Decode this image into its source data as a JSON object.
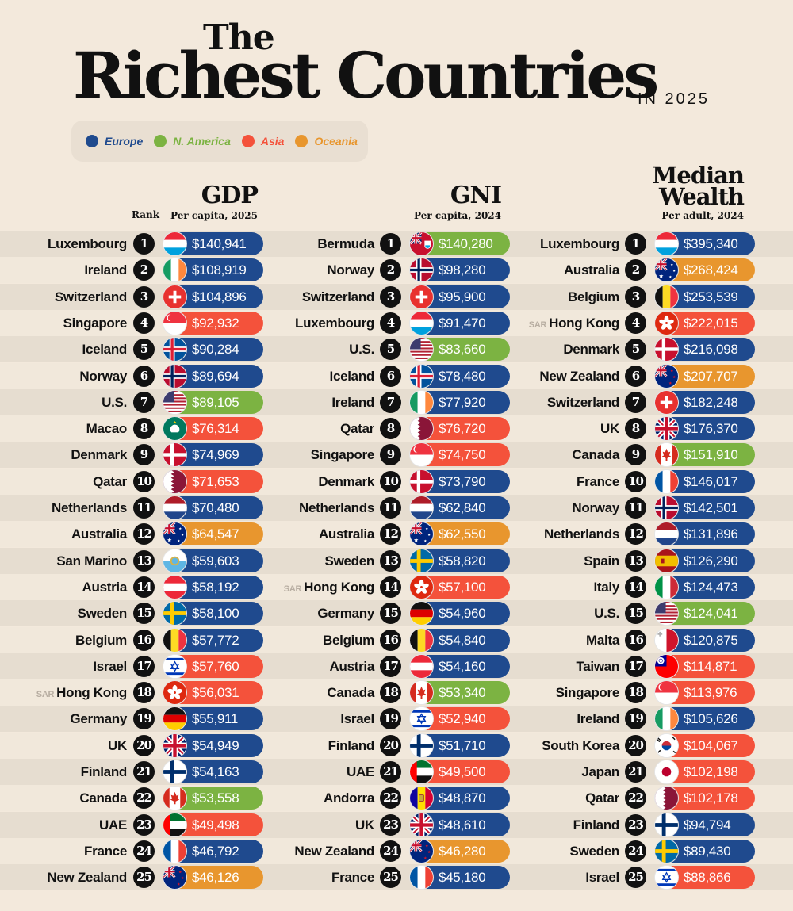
{
  "title": {
    "the": "The",
    "main": "Richest Countries",
    "year": "IN 2025"
  },
  "legend": [
    {
      "label": "Europe",
      "color": "#1f4a8e",
      "region": "europe"
    },
    {
      "label": "N. America",
      "color": "#7cb342",
      "region": "namerica"
    },
    {
      "label": "Asia",
      "color": "#f4523b",
      "region": "asia"
    },
    {
      "label": "Oceania",
      "color": "#e8962e",
      "region": "oceania"
    }
  ],
  "region_colors": {
    "europe": "#1f4a8e",
    "namerica": "#7cb342",
    "asia": "#f4523b",
    "oceania": "#e8962e"
  },
  "rank_header": "Rank",
  "chart_data": [
    {
      "type": "table",
      "title": "GDP",
      "subtitle": "Per capita, 2025",
      "rows": [
        {
          "rank": 1,
          "country": "Luxembourg",
          "value": "$140,941",
          "region": "europe",
          "flag": "lu"
        },
        {
          "rank": 2,
          "country": "Ireland",
          "value": "$108,919",
          "region": "europe",
          "flag": "ie"
        },
        {
          "rank": 3,
          "country": "Switzerland",
          "value": "$104,896",
          "region": "europe",
          "flag": "ch"
        },
        {
          "rank": 4,
          "country": "Singapore",
          "value": "$92,932",
          "region": "asia",
          "flag": "sg"
        },
        {
          "rank": 5,
          "country": "Iceland",
          "value": "$90,284",
          "region": "europe",
          "flag": "is"
        },
        {
          "rank": 6,
          "country": "Norway",
          "value": "$89,694",
          "region": "europe",
          "flag": "no"
        },
        {
          "rank": 7,
          "country": "U.S.",
          "value": "$89,105",
          "region": "namerica",
          "flag": "us"
        },
        {
          "rank": 8,
          "country": "Macao",
          "value": "$76,314",
          "region": "asia",
          "flag": "mo"
        },
        {
          "rank": 9,
          "country": "Denmark",
          "value": "$74,969",
          "region": "europe",
          "flag": "dk"
        },
        {
          "rank": 10,
          "country": "Qatar",
          "value": "$71,653",
          "region": "asia",
          "flag": "qa"
        },
        {
          "rank": 11,
          "country": "Netherlands",
          "value": "$70,480",
          "region": "europe",
          "flag": "nl"
        },
        {
          "rank": 12,
          "country": "Australia",
          "value": "$64,547",
          "region": "oceania",
          "flag": "au"
        },
        {
          "rank": 13,
          "country": "San Marino",
          "value": "$59,603",
          "region": "europe",
          "flag": "sm"
        },
        {
          "rank": 14,
          "country": "Austria",
          "value": "$58,192",
          "region": "europe",
          "flag": "at"
        },
        {
          "rank": 15,
          "country": "Sweden",
          "value": "$58,100",
          "region": "europe",
          "flag": "se"
        },
        {
          "rank": 16,
          "country": "Belgium",
          "value": "$57,772",
          "region": "europe",
          "flag": "be"
        },
        {
          "rank": 17,
          "country": "Israel",
          "value": "$57,760",
          "region": "asia",
          "flag": "il"
        },
        {
          "rank": 18,
          "country": "Hong Kong",
          "prefix": "SAR",
          "value": "$56,031",
          "region": "asia",
          "flag": "hk"
        },
        {
          "rank": 19,
          "country": "Germany",
          "value": "$55,911",
          "region": "europe",
          "flag": "de"
        },
        {
          "rank": 20,
          "country": "UK",
          "value": "$54,949",
          "region": "europe",
          "flag": "gb"
        },
        {
          "rank": 21,
          "country": "Finland",
          "value": "$54,163",
          "region": "europe",
          "flag": "fi"
        },
        {
          "rank": 22,
          "country": "Canada",
          "value": "$53,558",
          "region": "namerica",
          "flag": "ca"
        },
        {
          "rank": 23,
          "country": "UAE",
          "value": "$49,498",
          "region": "asia",
          "flag": "ae"
        },
        {
          "rank": 24,
          "country": "France",
          "value": "$46,792",
          "region": "europe",
          "flag": "fr"
        },
        {
          "rank": 25,
          "country": "New Zealand",
          "value": "$46,126",
          "region": "oceania",
          "flag": "nz"
        }
      ]
    },
    {
      "type": "table",
      "title": "GNI",
      "subtitle": "Per capita, 2024",
      "rows": [
        {
          "rank": 1,
          "country": "Bermuda",
          "value": "$140,280",
          "region": "namerica",
          "flag": "bm"
        },
        {
          "rank": 2,
          "country": "Norway",
          "value": "$98,280",
          "region": "europe",
          "flag": "no"
        },
        {
          "rank": 3,
          "country": "Switzerland",
          "value": "$95,900",
          "region": "europe",
          "flag": "ch"
        },
        {
          "rank": 4,
          "country": "Luxembourg",
          "value": "$91,470",
          "region": "europe",
          "flag": "lu"
        },
        {
          "rank": 5,
          "country": "U.S.",
          "value": "$83,660",
          "region": "namerica",
          "flag": "us"
        },
        {
          "rank": 6,
          "country": "Iceland",
          "value": "$78,480",
          "region": "europe",
          "flag": "is"
        },
        {
          "rank": 7,
          "country": "Ireland",
          "value": "$77,920",
          "region": "europe",
          "flag": "ie"
        },
        {
          "rank": 8,
          "country": "Qatar",
          "value": "$76,720",
          "region": "asia",
          "flag": "qa"
        },
        {
          "rank": 9,
          "country": "Singapore",
          "value": "$74,750",
          "region": "asia",
          "flag": "sg"
        },
        {
          "rank": 10,
          "country": "Denmark",
          "value": "$73,790",
          "region": "europe",
          "flag": "dk"
        },
        {
          "rank": 11,
          "country": "Netherlands",
          "value": "$62,840",
          "region": "europe",
          "flag": "nl"
        },
        {
          "rank": 12,
          "country": "Australia",
          "value": "$62,550",
          "region": "oceania",
          "flag": "au"
        },
        {
          "rank": 13,
          "country": "Sweden",
          "value": "$58,820",
          "region": "europe",
          "flag": "se"
        },
        {
          "rank": 14,
          "country": "Hong Kong",
          "prefix": "SAR",
          "value": "$57,100",
          "region": "asia",
          "flag": "hk"
        },
        {
          "rank": 15,
          "country": "Germany",
          "value": "$54,960",
          "region": "europe",
          "flag": "de"
        },
        {
          "rank": 16,
          "country": "Belgium",
          "value": "$54,840",
          "region": "europe",
          "flag": "be"
        },
        {
          "rank": 17,
          "country": "Austria",
          "value": "$54,160",
          "region": "europe",
          "flag": "at"
        },
        {
          "rank": 18,
          "country": "Canada",
          "value": "$53,340",
          "region": "namerica",
          "flag": "ca"
        },
        {
          "rank": 19,
          "country": "Israel",
          "value": "$52,940",
          "region": "asia",
          "flag": "il"
        },
        {
          "rank": 20,
          "country": "Finland",
          "value": "$51,710",
          "region": "europe",
          "flag": "fi"
        },
        {
          "rank": 21,
          "country": "UAE",
          "value": "$49,500",
          "region": "asia",
          "flag": "ae"
        },
        {
          "rank": 22,
          "country": "Andorra",
          "value": "$48,870",
          "region": "europe",
          "flag": "ad"
        },
        {
          "rank": 23,
          "country": "UK",
          "value": "$48,610",
          "region": "europe",
          "flag": "gb"
        },
        {
          "rank": 24,
          "country": "New Zealand",
          "value": "$46,280",
          "region": "oceania",
          "flag": "nz"
        },
        {
          "rank": 25,
          "country": "France",
          "value": "$45,180",
          "region": "europe",
          "flag": "fr"
        }
      ]
    },
    {
      "type": "table",
      "title": "Median Wealth",
      "title_lines": [
        "Median",
        "Wealth"
      ],
      "subtitle": "Per adult, 2024",
      "rows": [
        {
          "rank": 1,
          "country": "Luxembourg",
          "value": "$395,340",
          "region": "europe",
          "flag": "lu"
        },
        {
          "rank": 2,
          "country": "Australia",
          "value": "$268,424",
          "region": "oceania",
          "flag": "au"
        },
        {
          "rank": 3,
          "country": "Belgium",
          "value": "$253,539",
          "region": "europe",
          "flag": "be"
        },
        {
          "rank": 4,
          "country": "Hong Kong",
          "prefix": "SAR",
          "value": "$222,015",
          "region": "asia",
          "flag": "hk"
        },
        {
          "rank": 5,
          "country": "Denmark",
          "value": "$216,098",
          "region": "europe",
          "flag": "dk"
        },
        {
          "rank": 6,
          "country": "New Zealand",
          "value": "$207,707",
          "region": "oceania",
          "flag": "nz"
        },
        {
          "rank": 7,
          "country": "Switzerland",
          "value": "$182,248",
          "region": "europe",
          "flag": "ch"
        },
        {
          "rank": 8,
          "country": "UK",
          "value": "$176,370",
          "region": "europe",
          "flag": "gb"
        },
        {
          "rank": 9,
          "country": "Canada",
          "value": "$151,910",
          "region": "namerica",
          "flag": "ca"
        },
        {
          "rank": 10,
          "country": "France",
          "value": "$146,017",
          "region": "europe",
          "flag": "fr"
        },
        {
          "rank": 11,
          "country": "Norway",
          "value": "$142,501",
          "region": "europe",
          "flag": "no"
        },
        {
          "rank": 12,
          "country": "Netherlands",
          "value": "$131,896",
          "region": "europe",
          "flag": "nl"
        },
        {
          "rank": 13,
          "country": "Spain",
          "value": "$126,290",
          "region": "europe",
          "flag": "es"
        },
        {
          "rank": 14,
          "country": "Italy",
          "value": "$124,473",
          "region": "europe",
          "flag": "it"
        },
        {
          "rank": 15,
          "country": "U.S.",
          "value": "$124,041",
          "region": "namerica",
          "flag": "us"
        },
        {
          "rank": 16,
          "country": "Malta",
          "value": "$120,875",
          "region": "europe",
          "flag": "mt"
        },
        {
          "rank": 17,
          "country": "Taiwan",
          "value": "$114,871",
          "region": "asia",
          "flag": "tw"
        },
        {
          "rank": 18,
          "country": "Singapore",
          "value": "$113,976",
          "region": "asia",
          "flag": "sg"
        },
        {
          "rank": 19,
          "country": "Ireland",
          "value": "$105,626",
          "region": "europe",
          "flag": "ie"
        },
        {
          "rank": 20,
          "country": "South Korea",
          "value": "$104,067",
          "region": "asia",
          "flag": "kr"
        },
        {
          "rank": 21,
          "country": "Japan",
          "value": "$102,198",
          "region": "asia",
          "flag": "jp"
        },
        {
          "rank": 22,
          "country": "Qatar",
          "value": "$102,178",
          "region": "asia",
          "flag": "qa"
        },
        {
          "rank": 23,
          "country": "Finland",
          "value": "$94,794",
          "region": "europe",
          "flag": "fi"
        },
        {
          "rank": 24,
          "country": "Sweden",
          "value": "$89,430",
          "region": "europe",
          "flag": "se"
        },
        {
          "rank": 25,
          "country": "Israel",
          "value": "$88,866",
          "region": "asia",
          "flag": "il"
        }
      ]
    }
  ]
}
